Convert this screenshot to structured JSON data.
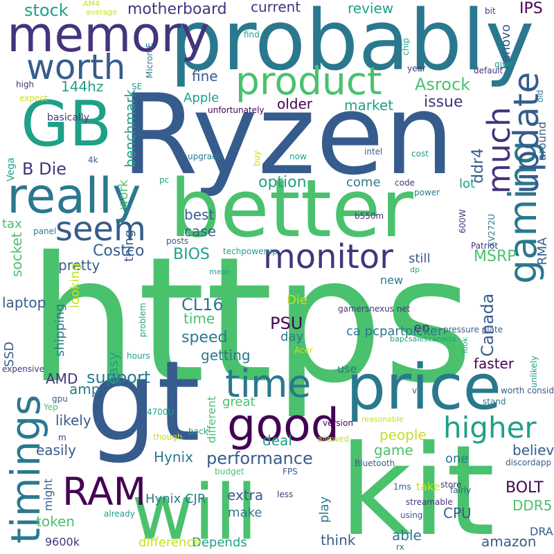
{
  "words": [
    "https",
    "gt",
    "Ryzen",
    "probably",
    "better",
    "kit",
    "will",
    "GB",
    "price",
    "memory",
    "really",
    "timings",
    "good",
    "time",
    "gaming",
    "update",
    "much",
    "product",
    "worth",
    "seem",
    "monitor",
    "RAM",
    "higher",
    "performance",
    "stock",
    "motherboard",
    "current",
    "review",
    "IPS",
    "Asrock",
    "144hz",
    "B Die",
    "benchmark",
    "issue",
    "option",
    "ddr4",
    "older",
    "market",
    "Apple",
    "fine",
    "BIOS",
    "support",
    "AMD",
    "CL16",
    "PSU",
    "speed",
    "time",
    "pretty",
    "Costco",
    "best",
    "case",
    "still",
    "MSRP",
    "new",
    "RMA",
    "Canada",
    "faster",
    "believe",
    "BOLT",
    "CPU",
    "DDR5",
    "able",
    "amazon",
    "think",
    "Depends",
    "difference",
    "9600k",
    "Hynix CJR",
    "Hynix",
    "game",
    "people",
    "deal",
    "easily",
    "token",
    "likely",
    "amp",
    "easy",
    "shipping",
    "looking",
    "SSD",
    "laptop",
    "tax",
    "socket",
    "great",
    "different",
    "getting",
    "come",
    "lot",
    "work",
    "use",
    "ca pcpartpicker",
    "en",
    "day",
    "Die",
    "one",
    "make",
    "play",
    "might",
    "thing",
    "4k",
    "Vega",
    "basically",
    "high",
    "expect",
    "SE",
    "Micron E",
    "AM4",
    "average",
    "find",
    "chip",
    "Lenovo",
    "bit",
    "give",
    "year",
    "default",
    "old",
    "around",
    "intel",
    "cost",
    "now",
    "upgrade",
    "buy",
    "unfortunately",
    "DRAM",
    "extra",
    "take",
    "pc",
    "code",
    "power",
    "b550m",
    "600W",
    "XV272U",
    "Patriot",
    "posts",
    "techpowerup",
    "mean",
    "dp",
    "panel",
    "pressure plate",
    "gamersnexus net",
    "bapcsalescanada",
    "look",
    "unlikely",
    "Acer",
    "problem",
    "hours",
    "expensive",
    "gpu",
    "Yep",
    "4700U",
    "though",
    "m",
    "back",
    "worth considering",
    "stand",
    "reasonable",
    "version",
    "allowed",
    "Bluetooth",
    "discordapp",
    "budget",
    "FPS",
    "1ms",
    "store",
    "fairly",
    "already",
    "less",
    "streamable",
    "using",
    "rx",
    "v",
    "s"
  ]
}
